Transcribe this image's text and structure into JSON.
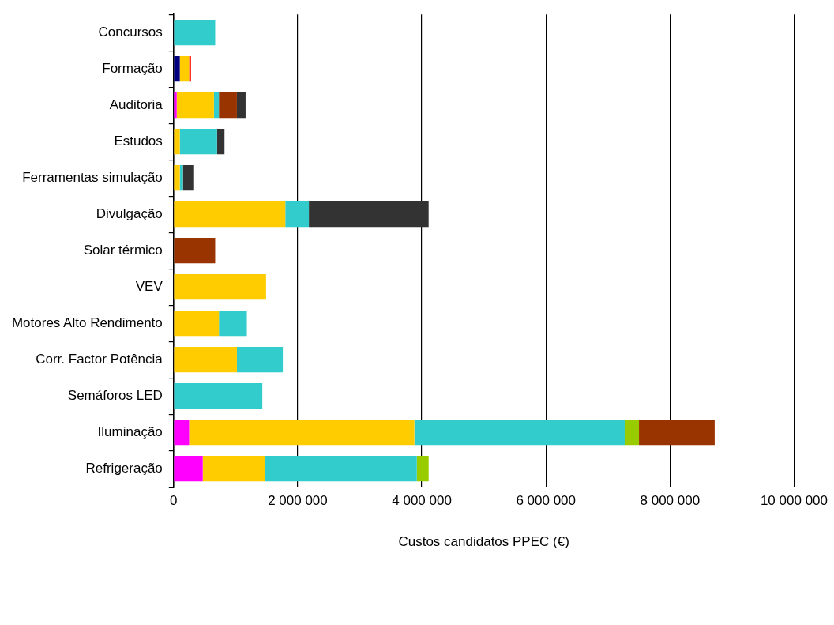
{
  "chart_data": {
    "type": "bar",
    "orientation": "horizontal",
    "stacked": true,
    "xlabel": "Custos candidatos PPEC (€)",
    "categories": [
      "Concursos",
      "Formação",
      "Auditoria",
      "Estudos",
      "Ferramentas simulação",
      "Divulgação",
      "Solar térmico",
      "VEV",
      "Motores Alto Rendimento",
      "Corr. Factor Potência",
      "Semáforos LED",
      "Iluminação",
      "Refrigeração"
    ],
    "series": [
      {
        "color": "#000080",
        "values": [
          null,
          100000,
          null,
          null,
          null,
          null,
          null,
          null,
          null,
          null,
          null,
          null,
          null
        ]
      },
      {
        "color": "#ff00ff",
        "values": [
          null,
          null,
          50000,
          null,
          null,
          null,
          null,
          null,
          null,
          null,
          null,
          250000,
          470000
        ]
      },
      {
        "color": "#ffcc00",
        "values": [
          null,
          150000,
          600000,
          100000,
          100000,
          1800000,
          null,
          1490000,
          730000,
          1020000,
          null,
          3630000,
          1000000
        ]
      },
      {
        "color": "#33cccc",
        "values": [
          670000,
          null,
          80000,
          600000,
          50000,
          380000,
          null,
          null,
          450000,
          740000,
          1430000,
          3400000,
          2450000
        ]
      },
      {
        "color": "#99cc00",
        "values": [
          null,
          null,
          null,
          null,
          null,
          null,
          null,
          null,
          null,
          null,
          null,
          220000,
          190000
        ]
      },
      {
        "color": "#993300",
        "values": [
          null,
          null,
          290000,
          null,
          null,
          null,
          670000,
          null,
          null,
          null,
          null,
          1220000,
          null
        ]
      },
      {
        "color": "#ff0000",
        "values": [
          null,
          30000,
          null,
          null,
          null,
          null,
          null,
          null,
          null,
          null,
          null,
          null,
          null
        ]
      },
      {
        "color": "#333333",
        "values": [
          null,
          null,
          140000,
          120000,
          180000,
          1930000,
          null,
          null,
          null,
          null,
          null,
          null,
          null
        ]
      }
    ],
    "xlim": [
      0,
      10000000
    ],
    "xticks": [
      0,
      {
        "value": 2000000,
        "label": "2 000 000"
      },
      {
        "value": 4000000,
        "label": "4 000 000"
      },
      {
        "value": 6000000,
        "label": "6 000 000"
      },
      {
        "value": 8000000,
        "label": "8 000 000"
      },
      {
        "value": 10000000,
        "label": "10 000 000"
      }
    ],
    "grid": "x",
    "legend": false
  }
}
